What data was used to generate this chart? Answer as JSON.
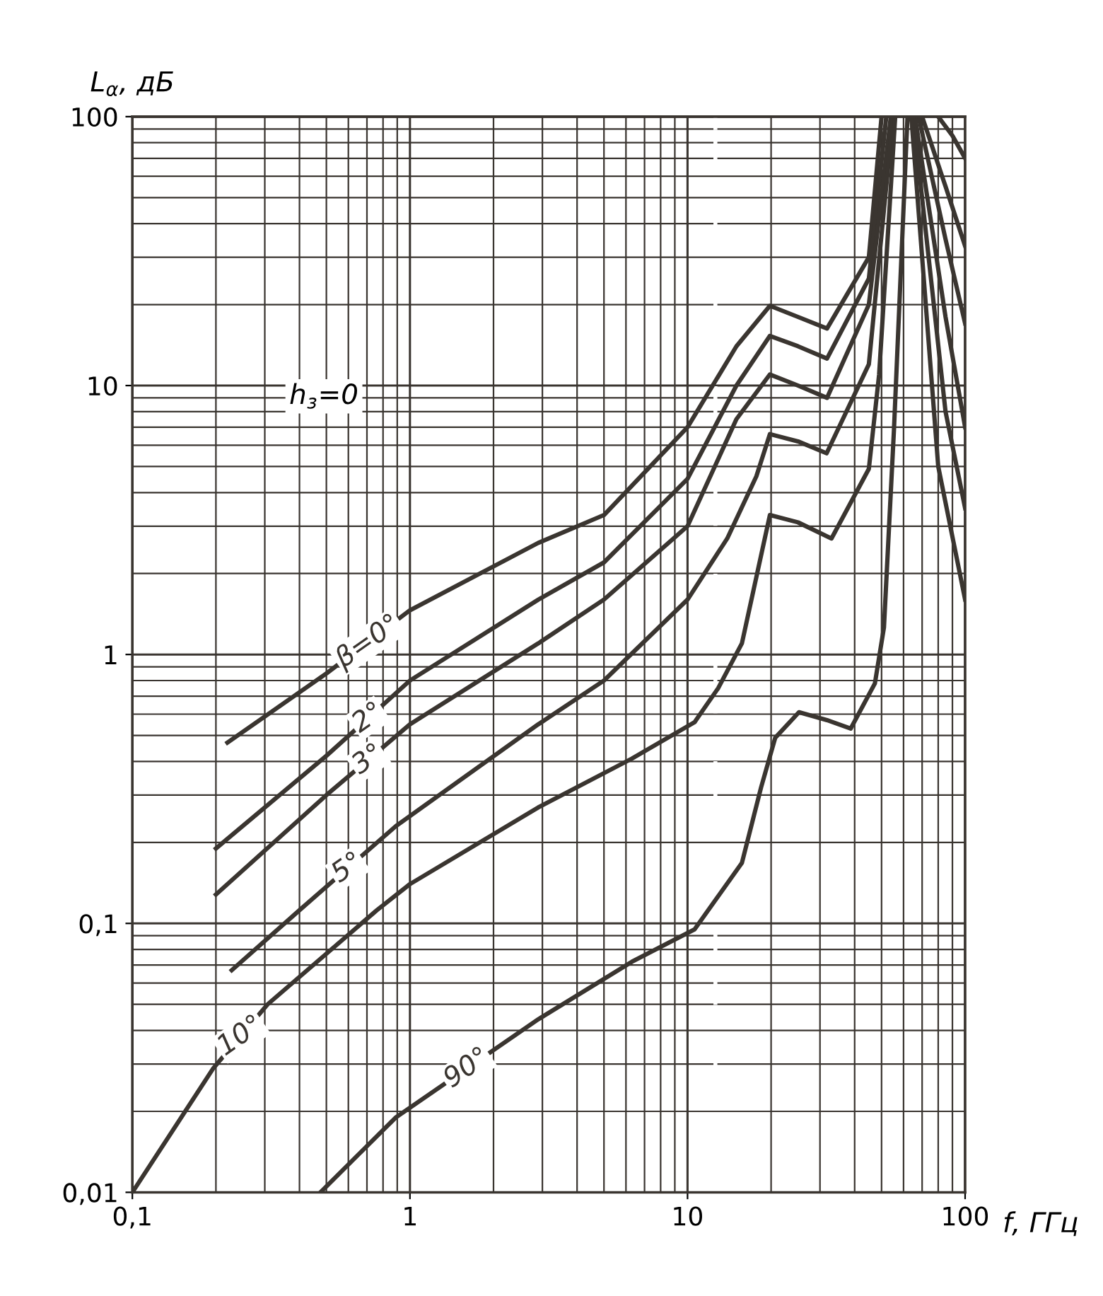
{
  "chart_data": {
    "type": "line",
    "ylabel": "L$_{α}$, дБ",
    "xlabel": "f, ГГц",
    "annotations": [
      "h$_{з}$=0"
    ],
    "log": "xy",
    "xlim": [
      0.1,
      100
    ],
    "ylim": [
      0.01,
      100
    ],
    "xticks": [
      {
        "value": 0.1,
        "label": "0,1"
      },
      1,
      10,
      100
    ],
    "yticks": [
      {
        "value": 0.01,
        "label": "0,01"
      },
      {
        "value": 0.1,
        "label": "0,1"
      },
      1,
      10,
      100
    ],
    "grid": true,
    "legend": false,
    "line_style": "solid",
    "marker": "none",
    "ref_lines": [
      {
        "axis": "x",
        "value": 12.6,
        "color": "#ffffff",
        "line_style": "dashed"
      }
    ],
    "series": [
      {
        "name": "β=0°",
        "color": "#3a3530",
        "x": [
          0.22,
          0.5,
          1,
          2.9,
          5,
          10,
          15,
          19.8,
          25,
          31.8,
          45,
          50,
          null,
          80,
          90,
          100
        ],
        "values": [
          0.47,
          0.85,
          1.46,
          2.6,
          3.3,
          7,
          14,
          19.8,
          18,
          16.3,
          30,
          100,
          null,
          100,
          85,
          70
        ]
      },
      {
        "name": "2°",
        "color": "#3a3530",
        "x": [
          0.2,
          0.5,
          1,
          2.9,
          5,
          10,
          15,
          19.8,
          25,
          31.8,
          45,
          52,
          null,
          70,
          85,
          100
        ],
        "values": [
          0.19,
          0.42,
          0.8,
          1.6,
          2.2,
          4.5,
          10,
          15.3,
          14,
          12.6,
          25,
          100,
          null,
          100,
          55,
          33
        ]
      },
      {
        "name": "3°",
        "color": "#3a3530",
        "x": [
          0.2,
          0.5,
          1,
          2.9,
          5,
          10,
          15,
          19.8,
          25,
          31.8,
          45,
          54,
          null,
          68,
          85,
          100
        ],
        "values": [
          0.128,
          0.3,
          0.55,
          1.1,
          1.6,
          3,
          7.5,
          11,
          10,
          9,
          20,
          100,
          null,
          100,
          35,
          17
        ]
      },
      {
        "name": "5°",
        "color": "#3a3530",
        "x": [
          0.228,
          0.4,
          0.89,
          2.9,
          5,
          10,
          13.9,
          17.7,
          19.8,
          25,
          31.7,
          45,
          55,
          null,
          66,
          85,
          100
        ],
        "values": [
          0.067,
          0.112,
          0.23,
          0.55,
          0.8,
          1.6,
          2.7,
          4.6,
          6.6,
          6.2,
          5.6,
          12,
          100,
          null,
          100,
          18,
          7
        ]
      },
      {
        "name": "10°",
        "color": "#3a3530",
        "x": [
          0.1,
          0.196,
          0.307,
          0.76,
          1,
          2.9,
          6.3,
          10.6,
          12.9,
          15.7,
          19.8,
          25,
          33,
          45,
          49,
          56,
          null,
          65,
          85,
          100
        ],
        "values": [
          0.01,
          0.029,
          0.05,
          0.112,
          0.14,
          0.27,
          0.41,
          0.56,
          0.75,
          1.1,
          3.3,
          3.1,
          2.7,
          4.9,
          11,
          100,
          null,
          100,
          8,
          3.5
        ]
      },
      {
        "name": "90°",
        "color": "#3a3530",
        "x": [
          0.476,
          0.89,
          2.9,
          6.3,
          10.6,
          15.7,
          18.4,
          20.7,
          25.2,
          31.8,
          38.7,
          47.3,
          51,
          55.4,
          62,
          null,
          64,
          80,
          100
        ],
        "values": [
          0.01,
          0.019,
          0.044,
          0.072,
          0.095,
          0.168,
          0.32,
          0.49,
          0.61,
          0.57,
          0.53,
          0.78,
          1.26,
          6.8,
          100,
          null,
          100,
          5,
          1.6
        ]
      }
    ]
  }
}
